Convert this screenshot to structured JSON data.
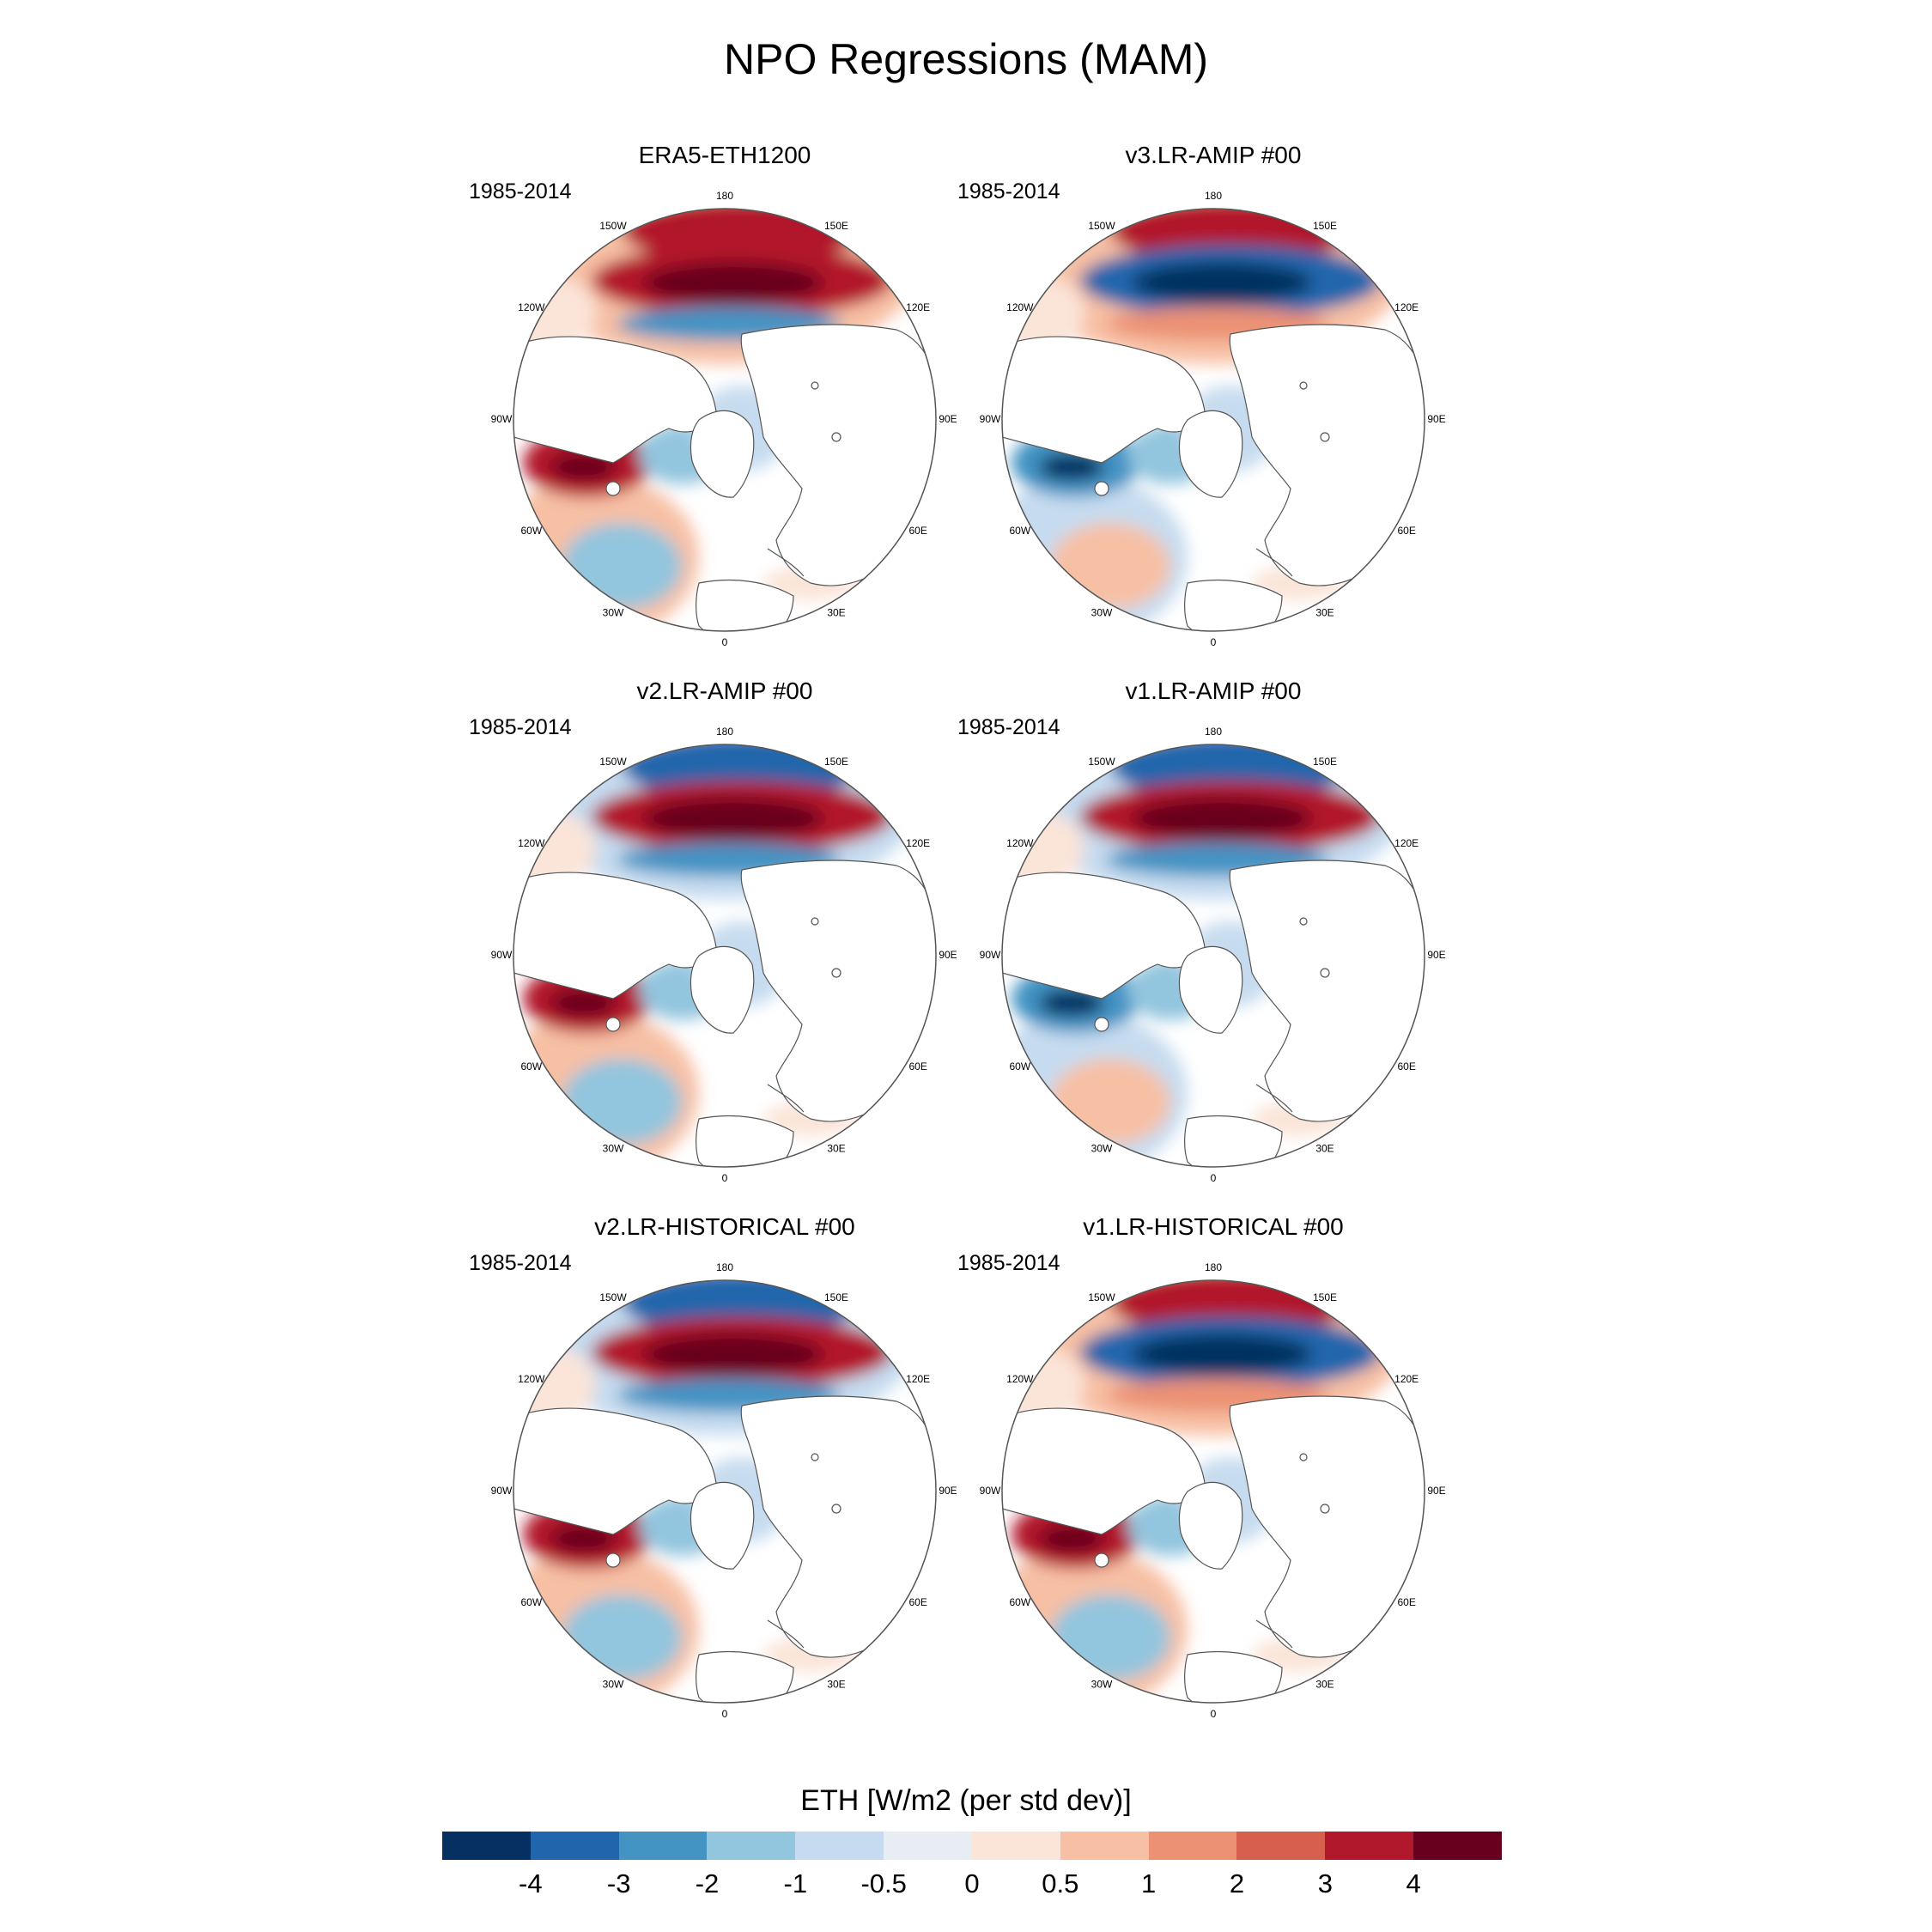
{
  "figure": {
    "title": "NPO Regressions (MAM)",
    "colorbar_title": "ETH [W/m2 (per std dev)]",
    "colorbar_ticks": [
      "-4",
      "-3",
      "-2",
      "-1",
      "-0.5",
      "0",
      "0.5",
      "1",
      "2",
      "3",
      "4"
    ],
    "colorbar_colors": [
      "#053061",
      "#2166ac",
      "#4393c3",
      "#92c5de",
      "#c6dbef",
      "#e7edf3",
      "#fbe4d8",
      "#f7c0a4",
      "#ec9173",
      "#d6604d",
      "#b2182b",
      "#67001f"
    ]
  },
  "lon_labels": [
    "180",
    "150E",
    "120E",
    "90E",
    "60E",
    "30E",
    "0",
    "30W",
    "60W",
    "90W",
    "120W",
    "150W"
  ],
  "panels": [
    {
      "title": "ERA5-ETH1200",
      "period": "1985-2014",
      "npo_pattern": {
        "north_pacific_ring": "positive",
        "outer_pacific_ring": "positive",
        "subpolar_atlantic": "negative"
      }
    },
    {
      "title": "v3.LR-AMIP  #00",
      "period": "1985-2014",
      "npo_pattern": {
        "north_pacific_ring": "negative",
        "outer_pacific_ring": "positive",
        "subpolar_atlantic": "positive"
      }
    },
    {
      "title": "v2.LR-AMIP  #00",
      "period": "1985-2014",
      "npo_pattern": {
        "north_pacific_ring": "positive",
        "outer_pacific_ring": "negative",
        "subpolar_atlantic": "negative"
      }
    },
    {
      "title": "v1.LR-AMIP  #00",
      "period": "1985-2014",
      "npo_pattern": {
        "north_pacific_ring": "positive",
        "outer_pacific_ring": "negative",
        "subpolar_atlantic": "positive"
      }
    },
    {
      "title": "v2.LR-HISTORICAL  #00",
      "period": "1985-2014",
      "npo_pattern": {
        "north_pacific_ring": "positive",
        "outer_pacific_ring": "negative",
        "subpolar_atlantic": "negative"
      }
    },
    {
      "title": "v1.LR-HISTORICAL  #00",
      "period": "1985-2014",
      "npo_pattern": {
        "north_pacific_ring": "negative",
        "outer_pacific_ring": "positive",
        "subpolar_atlantic": "negative"
      }
    }
  ]
}
